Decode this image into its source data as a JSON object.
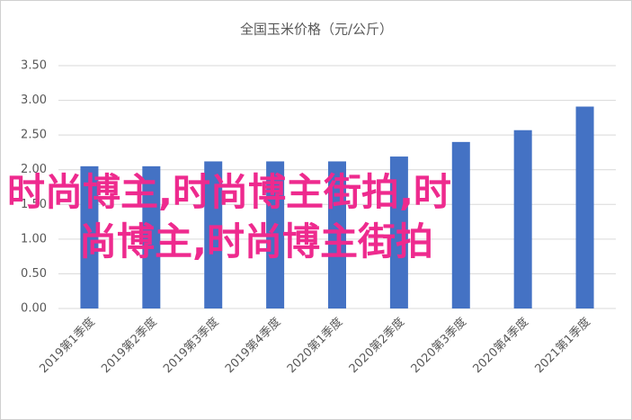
{
  "chart_data": {
    "type": "bar",
    "title": "全国玉米价格（元/公斤）",
    "categories": [
      "2019第1季度",
      "2019第2季度",
      "2019第3季度",
      "2019第4季度",
      "2020第1季度",
      "2020第2季度",
      "2020第3季度",
      "2020第4季度",
      "2021第1季度"
    ],
    "values": [
      2.05,
      2.05,
      2.12,
      2.12,
      2.12,
      2.19,
      2.4,
      2.57,
      2.91
    ],
    "color": "#4472c4",
    "ylim": [
      0,
      3.5
    ],
    "yticks": [
      {
        "value": 0,
        "label": "0.00"
      },
      {
        "value": 0.5,
        "label": "0.50"
      },
      {
        "value": 1,
        "label": "1.00"
      },
      {
        "value": 1.5,
        "label": "1.50"
      },
      {
        "value": 2,
        "label": "2.00"
      },
      {
        "value": 2.5,
        "label": "2.50"
      },
      {
        "value": 3,
        "label": "3.00"
      },
      {
        "value": 3.5,
        "label": "3.50"
      }
    ],
    "grid": true,
    "annotations": [
      "时尚博主,时尚博主街拍,时",
      "尚博主,时尚博主街拍"
    ]
  }
}
